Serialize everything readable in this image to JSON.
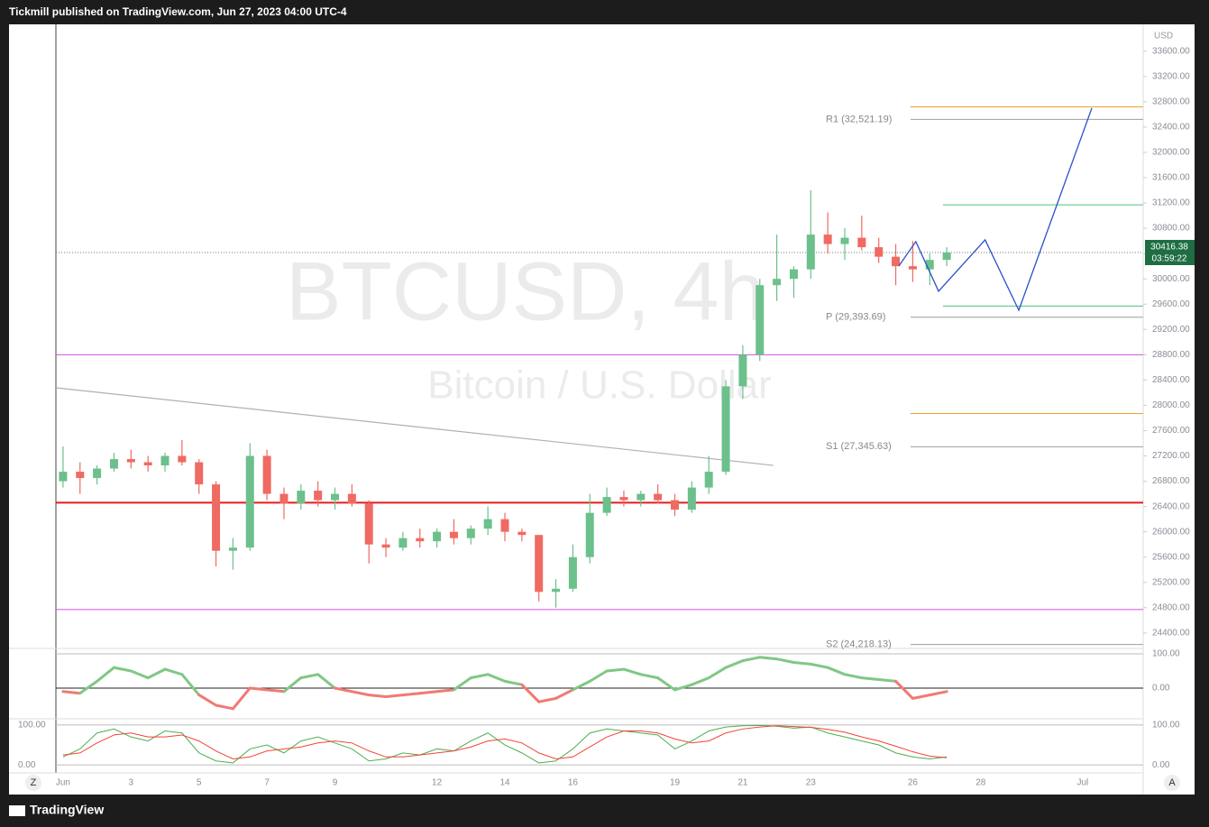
{
  "header": {
    "publisher": "Tickmill published on TradingView.com, Jun 27, 2023 04:00 UTC-4"
  },
  "footer": {
    "brand": "TradingView"
  },
  "buttons": [
    "Z",
    "A"
  ],
  "chart_data": [
    {
      "type": "candlestick",
      "title": "BTCUSD, 4h",
      "subtitle": "Bitcoin / U.S. Dollar",
      "currency": "USD",
      "x": [
        1,
        1.5,
        2,
        2.5,
        3,
        3.5,
        4,
        4.5,
        5,
        5.5,
        6,
        6.5,
        7,
        7.5,
        8,
        8.5,
        9,
        9.5,
        10,
        10.5,
        11,
        11.5,
        12,
        12.5,
        13,
        13.5,
        14,
        14.5,
        15,
        15.5,
        16,
        16.5,
        17,
        17.5,
        18,
        18.5,
        19,
        19.5,
        20,
        20.5,
        21,
        21.5,
        22,
        22.5,
        23,
        23.5,
        24,
        24.5,
        25,
        25.5,
        26,
        26.5,
        27
      ],
      "open": [
        26800,
        26950,
        26850,
        27000,
        27150,
        27100,
        27050,
        27200,
        27100,
        26750,
        25700,
        25750,
        27200,
        26600,
        26450,
        26650,
        26500,
        26600,
        26450,
        25800,
        25750,
        25900,
        25850,
        26000,
        25900,
        26050,
        26200,
        26000,
        25950,
        25050,
        25100,
        25600,
        26300,
        26550,
        26500,
        26600,
        26500,
        26350,
        26700,
        26950,
        28300,
        28800,
        29900,
        30000,
        30150,
        30700,
        30550,
        30650,
        30500,
        30350,
        30200,
        30150,
        30300
      ],
      "high": [
        27350,
        27100,
        27050,
        27250,
        27300,
        27200,
        27250,
        27450,
        27150,
        26800,
        25900,
        27400,
        27300,
        26700,
        26750,
        26800,
        26700,
        26750,
        26500,
        25900,
        26000,
        26050,
        26050,
        26200,
        26100,
        26400,
        26300,
        26050,
        25950,
        25250,
        25800,
        26600,
        26700,
        26650,
        26650,
        26750,
        26600,
        26800,
        27200,
        28400,
        28950,
        30000,
        30700,
        30200,
        31400,
        31050,
        30800,
        31000,
        30650,
        30550,
        30600,
        30400,
        30500
      ],
      "low": [
        26700,
        26600,
        26750,
        26950,
        27000,
        26950,
        26950,
        27050,
        26600,
        25450,
        25400,
        25700,
        26500,
        26200,
        26350,
        26400,
        26350,
        26400,
        25500,
        25600,
        25700,
        25750,
        25750,
        25800,
        25800,
        25950,
        25850,
        25850,
        24900,
        24800,
        25050,
        25500,
        26250,
        26400,
        26400,
        26450,
        26250,
        26300,
        26600,
        26900,
        28100,
        28700,
        29650,
        29700,
        30000,
        30400,
        30300,
        30450,
        30250,
        29900,
        29950,
        29900,
        30200
      ],
      "close": [
        26950,
        26850,
        27000,
        27150,
        27100,
        27050,
        27200,
        27100,
        26750,
        25700,
        25750,
        27200,
        26600,
        26450,
        26650,
        26500,
        26600,
        26450,
        25800,
        25750,
        25900,
        25850,
        26000,
        25900,
        26050,
        26200,
        26000,
        25950,
        25050,
        25100,
        25600,
        26300,
        26550,
        26500,
        26600,
        26500,
        26350,
        26700,
        26950,
        28300,
        28800,
        29900,
        30000,
        30150,
        30700,
        30550,
        30650,
        30500,
        30350,
        30200,
        30150,
        30300,
        30416.38
      ],
      "up_color": "#6cc08b",
      "down_color": "#ef6a62",
      "countdown": "03:59:22",
      "last_price_color": "#1f6e43",
      "xlim": [
        0.79,
        32.78
      ],
      "xticks": [
        {
          "value": 1,
          "label": "Jun"
        },
        3,
        5,
        7,
        9,
        12,
        14,
        16,
        19,
        21,
        23,
        26,
        28,
        {
          "value": 31,
          "label": "Jul"
        }
      ],
      "ylim": [
        24170,
        34010
      ],
      "yticks": [
        {
          "value": 24400,
          "label": "24400.00"
        },
        {
          "value": 24800,
          "label": "24800.00"
        },
        {
          "value": 25200,
          "label": "25200.00"
        },
        {
          "value": 25600,
          "label": "25600.00"
        },
        {
          "value": 26000,
          "label": "26000.00"
        },
        {
          "value": 26400,
          "label": "26400.00"
        },
        {
          "value": 26800,
          "label": "26800.00"
        },
        {
          "value": 27200,
          "label": "27200.00"
        },
        {
          "value": 27600,
          "label": "27600.00"
        },
        {
          "value": 28000,
          "label": "28000.00"
        },
        {
          "value": 28400,
          "label": "28400.00"
        },
        {
          "value": 28800,
          "label": "28800.00"
        },
        {
          "value": 29200,
          "label": "29200.00"
        },
        {
          "value": 29600,
          "label": "29600.00"
        },
        {
          "value": 30000,
          "label": "30000.00"
        },
        {
          "value": 30400,
          "label": "30400.00"
        },
        {
          "value": 30800,
          "label": "30800.00"
        },
        {
          "value": 31200,
          "label": "31200.00"
        },
        {
          "value": 31600,
          "label": "31600.00"
        },
        {
          "value": 32000,
          "label": "32000.00"
        },
        {
          "value": 32400,
          "label": "32400.00"
        },
        {
          "value": 32800,
          "label": "32800.00"
        },
        {
          "value": 33200,
          "label": "33200.00"
        },
        {
          "value": 33600,
          "label": "33600.00"
        }
      ],
      "pivots": [
        {
          "value": 32521.19,
          "label": "R1 (32,521.19)"
        },
        {
          "value": 29393.69,
          "label": "P (29,393.69)"
        },
        {
          "value": 27345.63,
          "label": "S1 (27,345.63)"
        },
        {
          "value": 24218.13,
          "label": "S2 (24,218.13)"
        }
      ],
      "pivot_color": "#9e9e9e",
      "levels": [
        {
          "value": 32720,
          "color": "#f0a030",
          "from": 25.93
        },
        {
          "value": 31170,
          "color": "#4cc37a",
          "from": 26.89
        },
        {
          "value": 29570,
          "color": "#4cc37a",
          "from": 26.89
        },
        {
          "value": 27870,
          "color": "#f0a030",
          "from": 25.93
        },
        {
          "value": 28800,
          "color": "#d84fe0"
        },
        {
          "value": 24770,
          "color": "#d84fe0"
        },
        {
          "value": 26460,
          "color": "#e51c1c"
        }
      ],
      "trendline": {
        "x": [
          0.79,
          21.9
        ],
        "y": [
          28277,
          27050
        ],
        "color": "#b0b0b0"
      },
      "projection": {
        "x": [
          25.59,
          26.09,
          26.76,
          28.13,
          29.12,
          31.27
        ],
        "y": [
          30203,
          30589,
          29804,
          30617,
          29504,
          32701
        ],
        "color": "#2b50c8"
      }
    },
    {
      "type": "line",
      "ylim": [
        -89.5,
        115.8
      ],
      "yticks": [
        {
          "value": 100,
          "label": "100.00"
        },
        {
          "value": 0,
          "label": "0.00"
        }
      ],
      "up_color": "#81c784",
      "down_color": "#f07a72",
      "values": [
        -10,
        -15,
        20,
        60,
        50,
        30,
        55,
        40,
        -20,
        -50,
        -60,
        0,
        -5,
        -10,
        30,
        40,
        0,
        -10,
        -20,
        -25,
        -20,
        -15,
        -10,
        -5,
        30,
        40,
        20,
        10,
        -40,
        -30,
        -5,
        20,
        50,
        55,
        40,
        30,
        -5,
        10,
        30,
        60,
        80,
        90,
        85,
        75,
        70,
        60,
        40,
        30,
        25,
        20,
        -30,
        -20,
        -10
      ]
    },
    {
      "type": "line",
      "ylim": [
        -20,
        113.3
      ],
      "yticks": [
        {
          "value": 100,
          "label": "100.00"
        },
        {
          "value": 0,
          "label": "0.00"
        }
      ],
      "series": [
        {
          "color": "#4caf50",
          "values": [
            20,
            40,
            80,
            90,
            70,
            60,
            85,
            80,
            30,
            10,
            5,
            40,
            50,
            30,
            60,
            70,
            55,
            40,
            10,
            15,
            30,
            25,
            40,
            35,
            60,
            80,
            50,
            30,
            5,
            10,
            40,
            80,
            90,
            85,
            80,
            75,
            40,
            60,
            85,
            95,
            98,
            99,
            97,
            92,
            95,
            80,
            70,
            60,
            50,
            30,
            20,
            15,
            20
          ]
        },
        {
          "color": "#f44336",
          "values": [
            25,
            30,
            55,
            75,
            80,
            70,
            70,
            75,
            60,
            35,
            15,
            20,
            35,
            40,
            45,
            55,
            60,
            55,
            35,
            20,
            20,
            25,
            30,
            35,
            45,
            60,
            65,
            55,
            30,
            15,
            20,
            45,
            70,
            85,
            85,
            80,
            65,
            55,
            60,
            80,
            90,
            95,
            98,
            96,
            94,
            89,
            82,
            70,
            60,
            47,
            33,
            22,
            18
          ]
        }
      ]
    }
  ]
}
